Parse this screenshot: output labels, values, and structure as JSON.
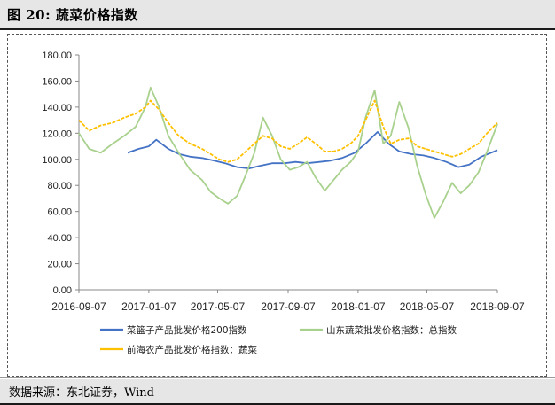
{
  "header": {
    "title": "图 20:  蔬菜价格指数"
  },
  "footer": {
    "source": "数据来源：东北证券，Wind"
  },
  "chart_data": {
    "type": "line",
    "ylim": [
      0,
      180
    ],
    "yticks": [
      "0.00",
      "20.00",
      "40.00",
      "60.00",
      "80.00",
      "100.00",
      "120.00",
      "140.00",
      "160.00",
      "180.00"
    ],
    "xlim": [
      "2016-09-07",
      "2018-09-07"
    ],
    "xticks": [
      "2016-09-07",
      "2017-01-07",
      "2017-05-07",
      "2017-09-07",
      "2018-01-07",
      "2018-05-07",
      "2018-09-07"
    ],
    "grid": false,
    "legend": "bottom",
    "colors": {
      "basket": "#4472c4",
      "shandong": "#a9d18e",
      "qianhai": "#ffc000"
    },
    "series": [
      {
        "name": "菜篮子产品批发价格200指数",
        "color": "#4472c4",
        "x": [
          "2016-12-01",
          "2016-12-20",
          "2017-01-07",
          "2017-01-20",
          "2017-02-10",
          "2017-03-01",
          "2017-03-20",
          "2017-04-10",
          "2017-05-01",
          "2017-05-20",
          "2017-06-10",
          "2017-07-01",
          "2017-07-20",
          "2017-08-10",
          "2017-09-01",
          "2017-09-20",
          "2017-10-10",
          "2017-11-01",
          "2017-11-20",
          "2017-12-10",
          "2018-01-01",
          "2018-01-20",
          "2018-02-10",
          "2018-03-01",
          "2018-03-20",
          "2018-04-10",
          "2018-05-01",
          "2018-05-20",
          "2018-06-10",
          "2018-07-01",
          "2018-07-20",
          "2018-08-10",
          "2018-09-07"
        ],
        "values": [
          105,
          108,
          110,
          115,
          108,
          104,
          102,
          101,
          99,
          97,
          94,
          93,
          95,
          97,
          97,
          98,
          97,
          98,
          99,
          101,
          105,
          112,
          121,
          112,
          106,
          104,
          103,
          101,
          98,
          94,
          96,
          102,
          107
        ]
      },
      {
        "name": "山东蔬菜批发价格指数：总指数",
        "color": "#a9d18e",
        "x": [
          "2016-09-07",
          "2016-09-25",
          "2016-10-15",
          "2016-11-05",
          "2016-11-25",
          "2016-12-15",
          "2017-01-01",
          "2017-01-10",
          "2017-01-25",
          "2017-02-10",
          "2017-02-28",
          "2017-03-20",
          "2017-04-10",
          "2017-04-25",
          "2017-05-10",
          "2017-05-25",
          "2017-06-10",
          "2017-06-25",
          "2017-07-10",
          "2017-07-25",
          "2017-08-10",
          "2017-08-25",
          "2017-09-10",
          "2017-09-25",
          "2017-10-10",
          "2017-10-25",
          "2017-11-10",
          "2017-11-25",
          "2017-12-10",
          "2017-12-25",
          "2018-01-07",
          "2018-01-20",
          "2018-02-05",
          "2018-02-20",
          "2018-03-05",
          "2018-03-20",
          "2018-04-05",
          "2018-04-20",
          "2018-05-05",
          "2018-05-20",
          "2018-06-05",
          "2018-06-20",
          "2018-07-05",
          "2018-07-20",
          "2018-08-05",
          "2018-08-20",
          "2018-09-07"
        ],
        "values": [
          120,
          108,
          105,
          112,
          118,
          125,
          140,
          155,
          140,
          118,
          105,
          92,
          84,
          75,
          70,
          66,
          72,
          88,
          105,
          132,
          118,
          100,
          92,
          94,
          98,
          86,
          76,
          84,
          92,
          98,
          106,
          132,
          153,
          112,
          118,
          144,
          124,
          95,
          73,
          55,
          68,
          82,
          74,
          80,
          90,
          106,
          127
        ]
      },
      {
        "name": "前海农产品批发价格指数：蔬菜",
        "color": "#ffc000",
        "x": [
          "2016-09-07",
          "2016-09-25",
          "2016-10-15",
          "2016-11-05",
          "2016-11-25",
          "2016-12-15",
          "2017-01-01",
          "2017-01-10",
          "2017-01-25",
          "2017-02-10",
          "2017-02-28",
          "2017-03-20",
          "2017-04-10",
          "2017-04-25",
          "2017-05-10",
          "2017-05-25",
          "2017-06-10",
          "2017-06-25",
          "2017-07-10",
          "2017-07-25",
          "2017-08-10",
          "2017-08-25",
          "2017-09-10",
          "2017-09-25",
          "2017-10-10",
          "2017-10-25",
          "2017-11-10",
          "2017-11-25",
          "2017-12-10",
          "2017-12-25",
          "2018-01-07",
          "2018-01-20",
          "2018-02-05",
          "2018-02-20",
          "2018-03-05",
          "2018-03-20",
          "2018-04-05",
          "2018-04-20",
          "2018-05-05",
          "2018-05-20",
          "2018-06-05",
          "2018-06-20",
          "2018-07-05",
          "2018-07-20",
          "2018-08-05",
          "2018-08-20",
          "2018-09-07"
        ],
        "values": [
          130,
          122,
          126,
          128,
          132,
          135,
          140,
          145,
          138,
          128,
          118,
          112,
          108,
          104,
          100,
          98,
          100,
          106,
          112,
          118,
          116,
          110,
          108,
          112,
          117,
          112,
          106,
          106,
          108,
          112,
          118,
          130,
          145,
          125,
          112,
          115,
          116,
          110,
          108,
          106,
          104,
          102,
          104,
          108,
          112,
          120,
          128
        ]
      }
    ]
  }
}
